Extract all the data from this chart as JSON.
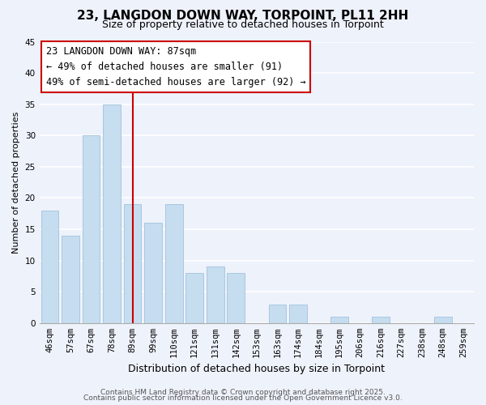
{
  "title": "23, LANGDON DOWN WAY, TORPOINT, PL11 2HH",
  "subtitle": "Size of property relative to detached houses in Torpoint",
  "xlabel": "Distribution of detached houses by size in Torpoint",
  "ylabel": "Number of detached properties",
  "bar_labels": [
    "46sqm",
    "57sqm",
    "67sqm",
    "78sqm",
    "89sqm",
    "99sqm",
    "110sqm",
    "121sqm",
    "131sqm",
    "142sqm",
    "153sqm",
    "163sqm",
    "174sqm",
    "184sqm",
    "195sqm",
    "206sqm",
    "216sqm",
    "227sqm",
    "238sqm",
    "248sqm",
    "259sqm"
  ],
  "bar_values": [
    18,
    14,
    30,
    35,
    19,
    16,
    19,
    8,
    9,
    8,
    0,
    3,
    3,
    0,
    1,
    0,
    1,
    0,
    0,
    1,
    0
  ],
  "bar_color": "#c5ddef",
  "bar_edge_color": "#a8c8e0",
  "vline_x_index": 4,
  "vline_color": "#cc0000",
  "ylim": [
    0,
    45
  ],
  "yticks": [
    0,
    5,
    10,
    15,
    20,
    25,
    30,
    35,
    40,
    45
  ],
  "annotation_title": "23 LANGDON DOWN WAY: 87sqm",
  "annotation_line1": "← 49% of detached houses are smaller (91)",
  "annotation_line2": "49% of semi-detached houses are larger (92) →",
  "annotation_box_facecolor": "#ffffff",
  "annotation_box_edgecolor": "#cc0000",
  "footer_line1": "Contains HM Land Registry data © Crown copyright and database right 2025.",
  "footer_line2": "Contains public sector information licensed under the Open Government Licence v3.0.",
  "background_color": "#eef2fb",
  "grid_color": "#ffffff",
  "title_fontsize": 11,
  "subtitle_fontsize": 9,
  "xlabel_fontsize": 9,
  "ylabel_fontsize": 8,
  "tick_fontsize": 7.5,
  "annotation_fontsize": 8.5,
  "footer_fontsize": 6.5
}
